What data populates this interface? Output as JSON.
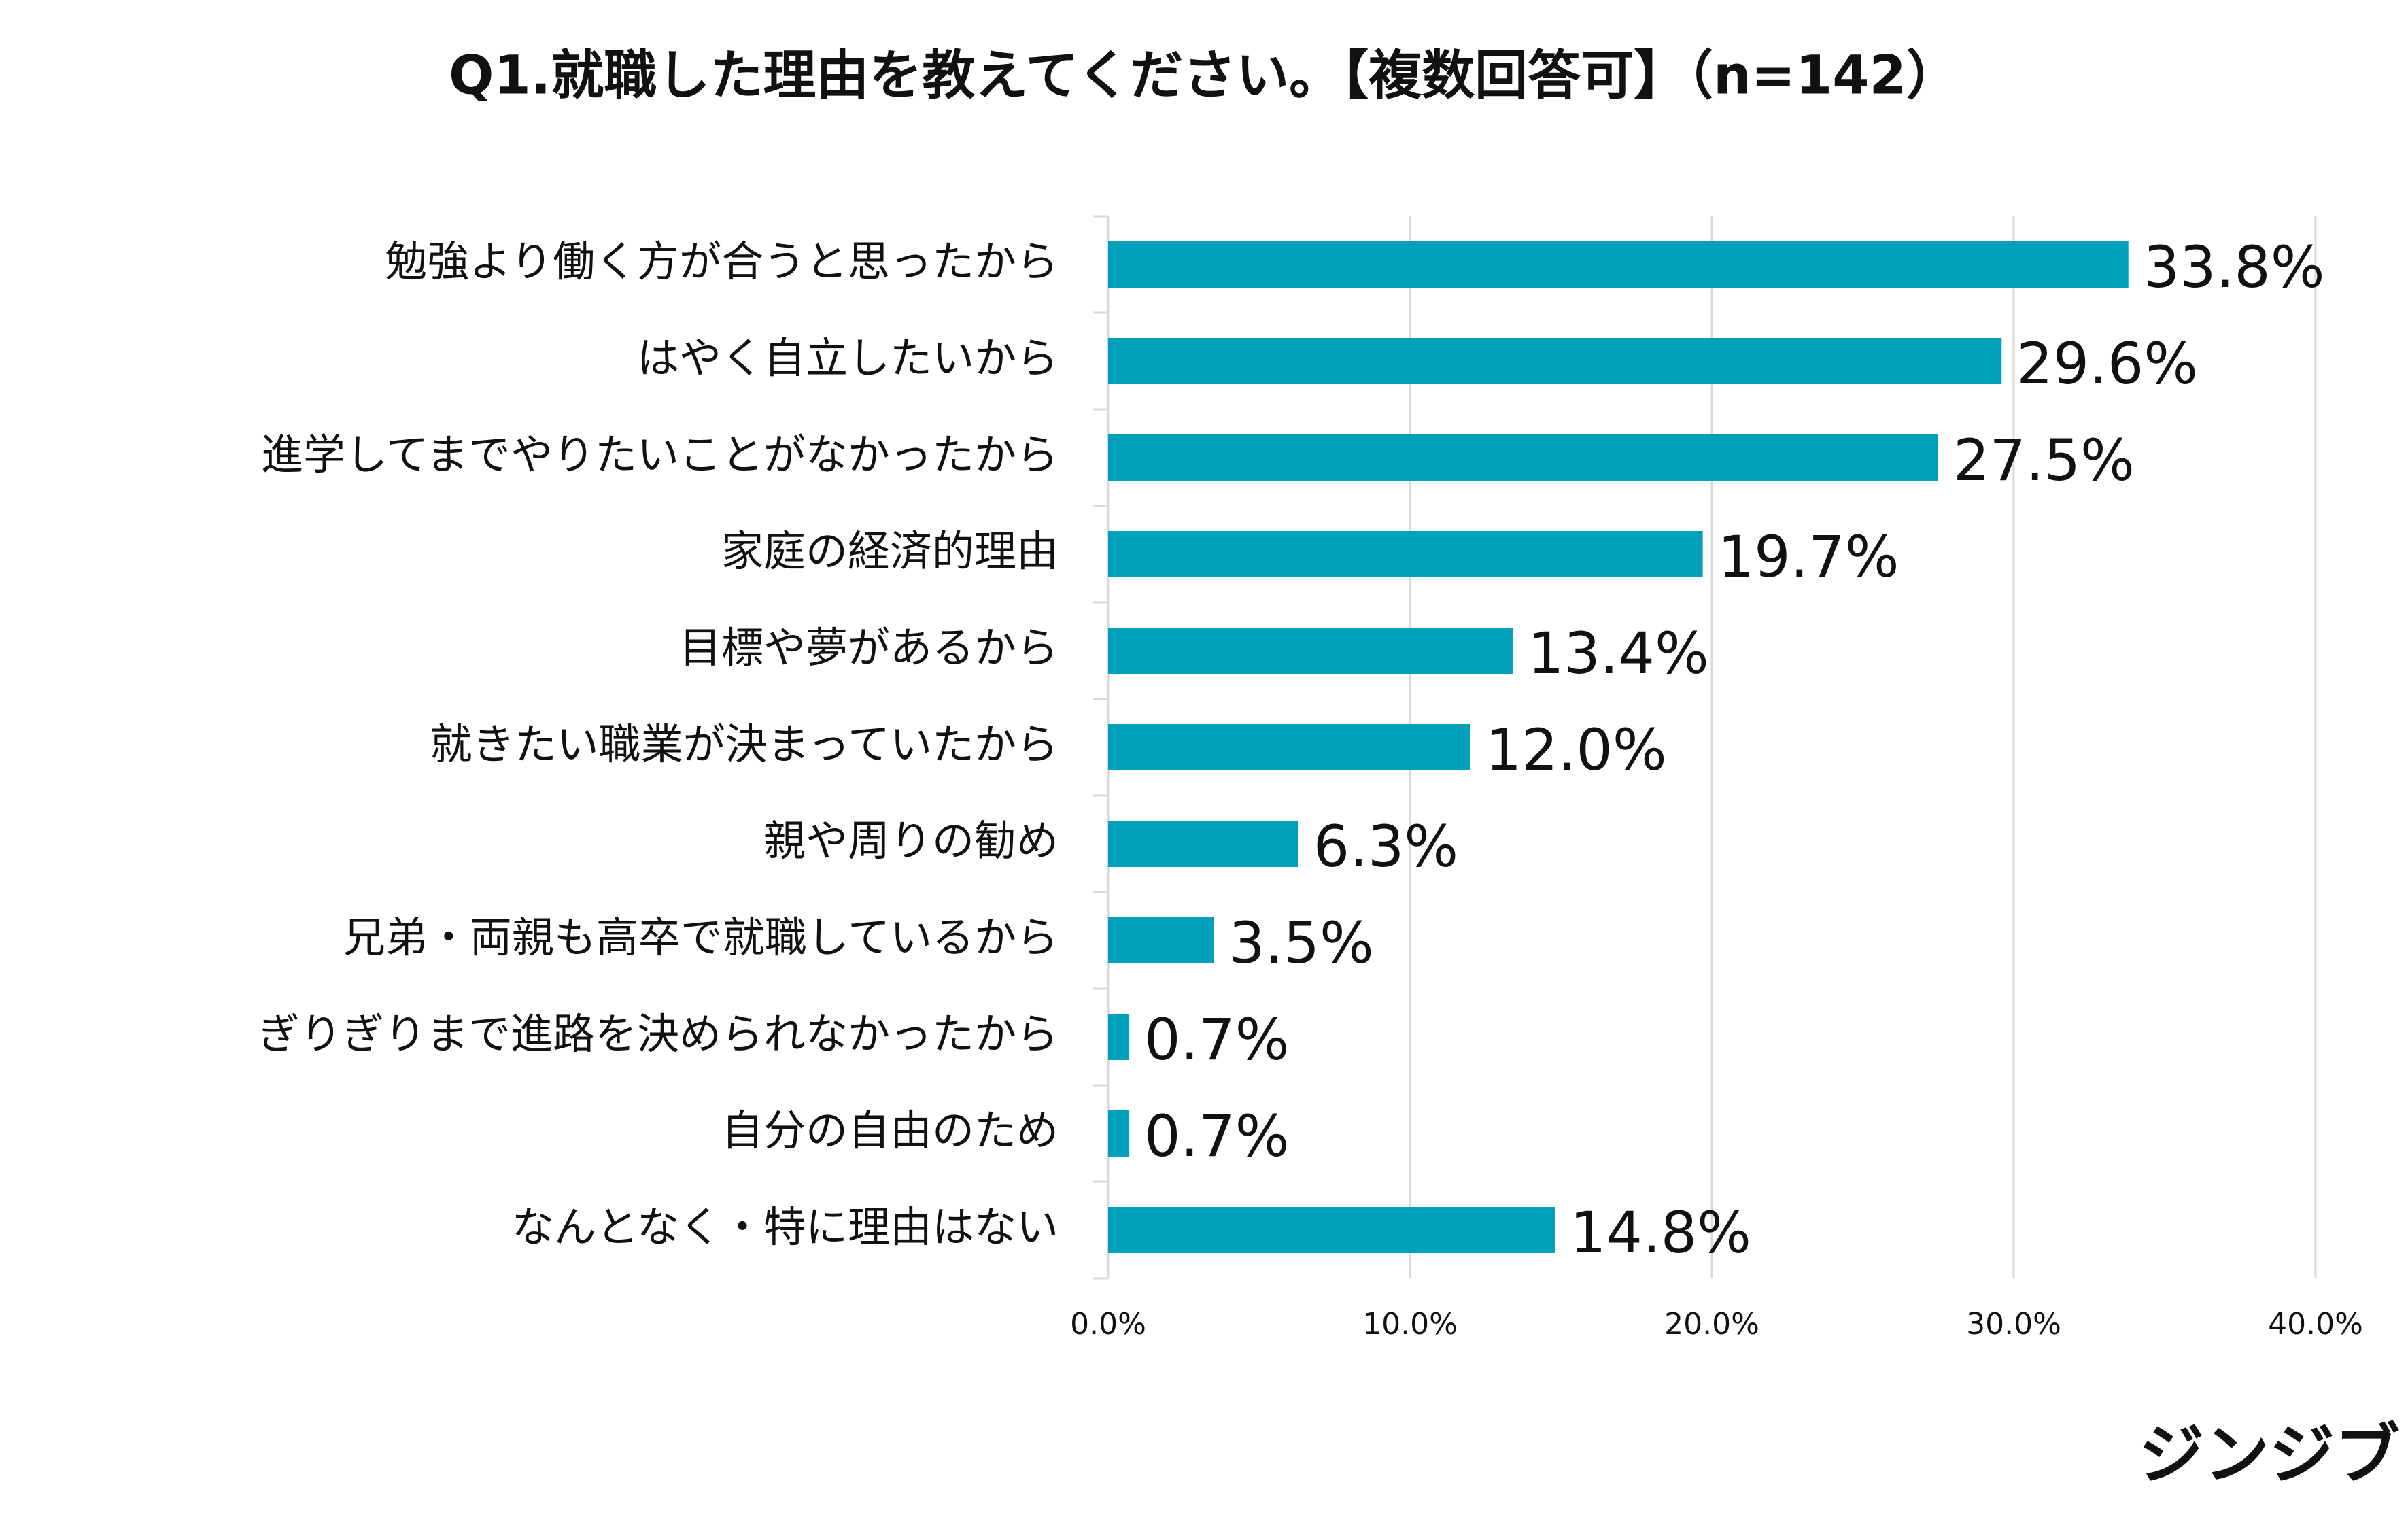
{
  "chart_data": {
    "type": "hbar",
    "title": "Q1.就職した理由を教えてください。【複数回答可】（n=142）",
    "categories": [
      "勉強より働く方が合うと思ったから",
      "はやく自立したいから",
      "進学してまでやりたいことがなかったから",
      "家庭の経済的理由",
      "目標や夢があるから",
      "就きたい職業が決まっていたから",
      "親や周りの勧め",
      "兄弟・両親も高卒で就職しているから",
      "ぎりぎりまで進路を決められなかったから",
      "自分の自由のため",
      "なんとなく・特に理由はない"
    ],
    "values": [
      33.8,
      29.6,
      27.5,
      19.7,
      13.4,
      12.0,
      6.3,
      3.5,
      0.7,
      0.7,
      14.8
    ],
    "value_labels": [
      "33.8%",
      "29.6%",
      "27.5%",
      "19.7%",
      "13.4%",
      "12.0%",
      "6.3%",
      "3.5%",
      "0.7%",
      "0.7%",
      "14.8%"
    ],
    "color": "#009fba",
    "xlim": [
      0,
      40
    ],
    "xticks": [
      {
        "value": 0,
        "label": "0.0%"
      },
      {
        "value": 10,
        "label": "10.0%"
      },
      {
        "value": 20,
        "label": "20.0%"
      },
      {
        "value": 30,
        "label": "30.0%"
      },
      {
        "value": 40,
        "label": "40.0%"
      }
    ],
    "grid": true
  },
  "logo": "ジンジブ"
}
